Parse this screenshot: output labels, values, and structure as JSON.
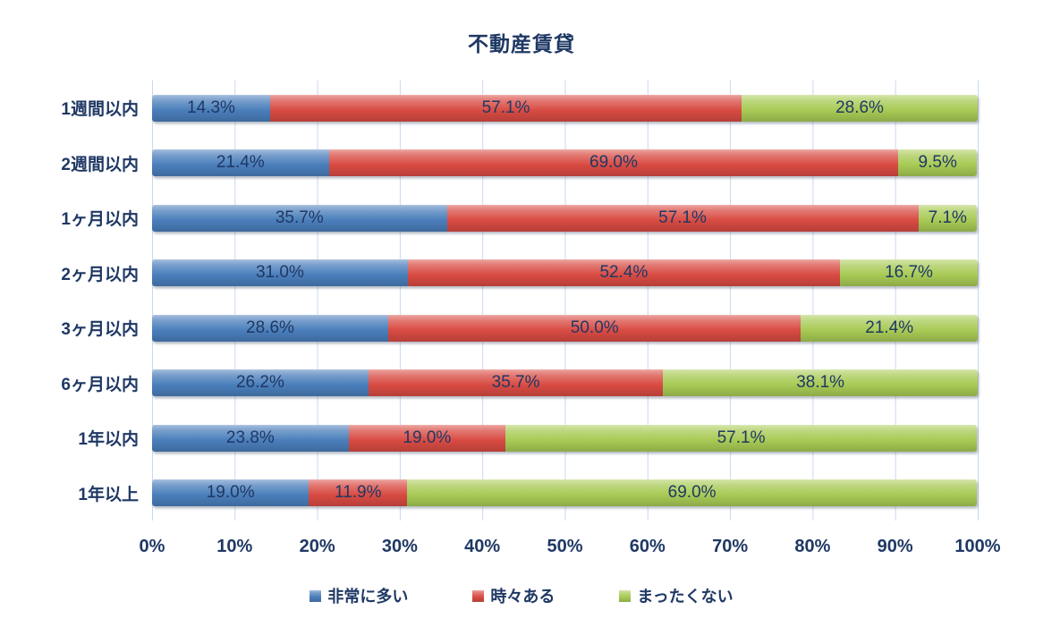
{
  "title": "不動産賃貸",
  "colors": {
    "text_navy": "#1F3864",
    "gridline": "#c9d8ef",
    "series_blue": "#4a7ebb",
    "series_red": "#d84b43",
    "series_green": "#a8ca55",
    "background": "#ffffff"
  },
  "chart_data": {
    "type": "bar",
    "stacked": true,
    "orientation": "horizontal",
    "title": "不動産賃貸",
    "categories": [
      "1週間以内",
      "2週間以内",
      "1ヶ月以内",
      "2ヶ月以内",
      "3ヶ月以内",
      "6ヶ月以内",
      "1年以内",
      "1年以上"
    ],
    "series": [
      {
        "name": "非常に多い",
        "color": "#4a7ebb",
        "values": [
          14.3,
          21.4,
          35.7,
          31.0,
          28.6,
          26.2,
          23.8,
          19.0
        ]
      },
      {
        "name": "時々ある",
        "color": "#d84b43",
        "values": [
          57.1,
          69.0,
          57.1,
          52.4,
          50.0,
          35.7,
          19.0,
          11.9
        ]
      },
      {
        "name": "まったくない",
        "color": "#a8ca55",
        "values": [
          28.6,
          9.5,
          7.1,
          16.7,
          21.4,
          38.1,
          57.1,
          69.0
        ]
      }
    ],
    "value_label_format": "percent_one_decimal",
    "xlim": [
      0,
      100
    ],
    "x_ticks": [
      "0%",
      "10%",
      "20%",
      "30%",
      "40%",
      "50%",
      "60%",
      "70%",
      "80%",
      "90%",
      "100%"
    ],
    "grid": "vertical",
    "legend_position": "bottom"
  }
}
